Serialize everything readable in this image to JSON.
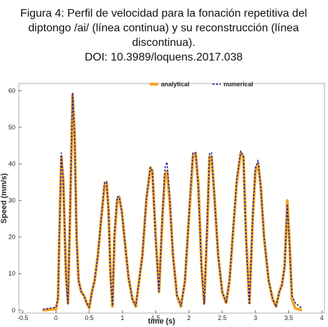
{
  "chart_data": {
    "type": "line",
    "title": [
      "Figura 4: Perfil de velocidad para la fonación repetitiva del",
      "diptongo /ai/ (línea continua) y su reconstrucción (línea",
      "discontinua).",
      "DOI: 10.3989/loquens.2017.038"
    ],
    "xlabel": "time (s)",
    "ylabel": "Speed (mm/s)",
    "x": [
      -0.2,
      0,
      0.03,
      0.05,
      0.08,
      0.11,
      0.15,
      0.18,
      0.21,
      0.25,
      0.28,
      0.31,
      0.34,
      0.38,
      0.42,
      0.46,
      0.5,
      0.54,
      0.58,
      0.63,
      0.68,
      0.73,
      0.76,
      0.79,
      0.82,
      0.85,
      0.88,
      0.92,
      0.95,
      0.99,
      1.04,
      1.09,
      1.15,
      1.2,
      1.25,
      1.3,
      1.36,
      1.42,
      1.45,
      1.5,
      1.55,
      1.6,
      1.64,
      1.67,
      1.71,
      1.76,
      1.82,
      1.88,
      1.94,
      2.0,
      2.06,
      2.1,
      2.14,
      2.19,
      2.23,
      2.27,
      2.31,
      2.34,
      2.38,
      2.44,
      2.5,
      2.56,
      2.61,
      2.66,
      2.72,
      2.78,
      2.82,
      2.86,
      2.91,
      2.96,
      3.0,
      3.04,
      3.08,
      3.13,
      3.2,
      3.26,
      3.31,
      3.36,
      3.4,
      3.44,
      3.48,
      3.51,
      3.55,
      3.6,
      3.7
    ],
    "series": [
      {
        "name": "analytical",
        "color": "#f5a623",
        "dashed": false,
        "width": 4,
        "values": [
          0,
          0.3,
          3,
          20,
          42,
          35,
          10,
          2,
          25,
          59,
          48,
          20,
          8,
          5,
          4,
          2,
          0.5,
          5,
          8,
          15,
          25,
          34,
          35,
          28,
          10,
          1,
          20,
          30,
          31,
          27,
          18,
          9,
          3,
          1,
          8,
          15,
          30,
          39,
          38,
          20,
          5,
          25,
          37,
          38,
          30,
          15,
          4,
          1,
          8,
          25,
          42,
          43,
          35,
          12,
          2,
          20,
          42,
          42,
          32,
          15,
          5,
          2,
          8,
          20,
          35,
          43,
          42,
          20,
          2,
          25,
          38,
          40,
          34,
          20,
          8,
          3,
          1,
          5,
          7,
          12,
          30,
          20,
          3,
          0.5,
          0
        ]
      },
      {
        "name": "numerical",
        "color": "#1f1fa8",
        "dashed": true,
        "width": 1.6,
        "values": [
          0.2,
          0.8,
          3.5,
          21,
          43,
          35,
          9,
          1.5,
          26,
          59.5,
          47,
          19,
          8,
          5,
          4,
          2,
          0.8,
          5,
          8,
          15,
          25,
          35,
          35,
          27,
          9,
          1.2,
          21,
          31,
          31,
          27,
          18,
          9,
          3,
          1.2,
          8,
          15,
          31,
          39,
          38,
          19,
          5,
          26,
          39,
          40.5,
          31,
          15,
          4,
          1.2,
          8,
          26,
          43,
          43,
          34,
          11,
          1.5,
          21,
          43,
          43,
          32,
          15,
          5,
          2,
          8,
          21,
          36,
          43.5,
          42,
          19,
          1.5,
          26,
          39,
          41,
          34,
          20,
          8,
          3,
          1,
          5,
          7,
          12,
          29,
          19,
          4,
          2,
          0.5
        ]
      }
    ],
    "xlim": [
      -0.56,
      4.04
    ],
    "ylim": [
      -0.8,
      62
    ],
    "xticks": [
      -0.5,
      0,
      0.5,
      1,
      1.5,
      2,
      2.5,
      3,
      3.5,
      4
    ],
    "yticks": [
      0,
      10,
      20,
      30,
      40,
      50,
      60
    ],
    "legend": "top"
  }
}
